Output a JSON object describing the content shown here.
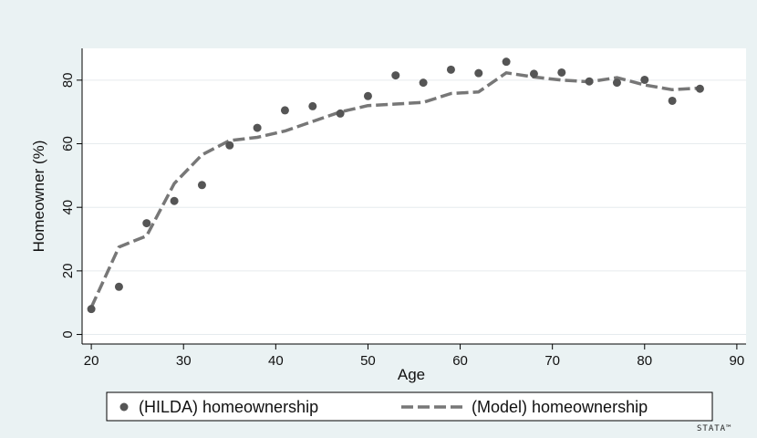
{
  "chart_data": {
    "type": "scatter",
    "xlabel": "Age",
    "ylabel": "Homeowner (%)",
    "xlim": [
      19,
      91
    ],
    "ylim": [
      -3,
      90
    ],
    "x_ticks": [
      20,
      30,
      40,
      50,
      60,
      70,
      80,
      90
    ],
    "y_ticks": [
      0,
      20,
      40,
      60,
      80
    ],
    "grid": "horizontal",
    "legend_position": "bottom",
    "series": [
      {
        "name": "(HILDA) homeownership",
        "style": "markers",
        "color": "#555555",
        "x": [
          20,
          23,
          26,
          29,
          32,
          35,
          38,
          41,
          44,
          47,
          50,
          53,
          56,
          59,
          62,
          65,
          68,
          71,
          74,
          77,
          80,
          83,
          86
        ],
        "y": [
          8,
          15,
          35,
          42,
          47,
          59.5,
          65,
          70.5,
          71.8,
          69.5,
          75,
          81.5,
          79.2,
          83.3,
          82.2,
          85.8,
          82,
          82.4,
          79.6,
          79.2,
          80.1,
          73.5,
          77.3
        ]
      },
      {
        "name": "(Model) homeownership",
        "style": "dashed-line",
        "color": "#777777",
        "x": [
          20,
          23,
          26,
          29,
          32,
          35,
          38,
          41,
          44,
          47,
          50,
          53,
          56,
          59,
          62,
          65,
          68,
          71,
          74,
          77,
          80,
          83,
          86
        ],
        "y": [
          8.5,
          27.5,
          31,
          47.5,
          56.5,
          61,
          62,
          64,
          67,
          70,
          72,
          72.5,
          73,
          75.8,
          76.3,
          82.3,
          81,
          80,
          79.5,
          80.8,
          78.5,
          77,
          77.5
        ]
      }
    ]
  },
  "logo": "STATA™",
  "colors": {
    "background": "#eaf2f3",
    "plot_background": "#ffffff",
    "grid": "#e6ebee",
    "axis": "#000000"
  }
}
